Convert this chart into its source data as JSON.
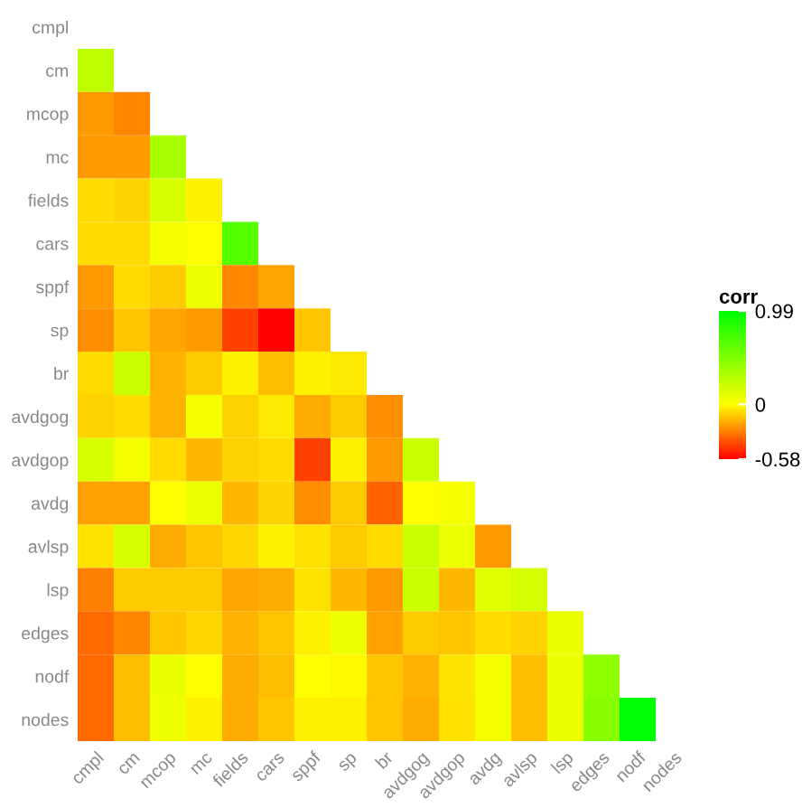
{
  "chart_data": {
    "type": "heatmap",
    "clabel": "corr",
    "clim": [
      -0.58,
      0.99
    ],
    "cticks": [
      -0.58,
      0,
      0.99
    ],
    "categories": [
      "cmpl",
      "cm",
      "mcop",
      "mc",
      "fields",
      "cars",
      "sppf",
      "sp",
      "br",
      "avdgog",
      "avdgop",
      "avdg",
      "avlsp",
      "lsp",
      "edges",
      "nodf",
      "nodes"
    ],
    "y_categories": [
      "cmpl",
      "cm",
      "mcop",
      "mc",
      "fields",
      "cars",
      "sppf",
      "sp",
      "br",
      "avdgog",
      "avdgop",
      "avdg",
      "avlsp",
      "lsp",
      "edges",
      "nodf",
      "nodes"
    ],
    "cells": [
      [
        null,
        null,
        null,
        null,
        null,
        null,
        null,
        null,
        null,
        null,
        null,
        null,
        null,
        null,
        null,
        null,
        null
      ],
      [
        0.25,
        null,
        null,
        null,
        null,
        null,
        null,
        null,
        null,
        null,
        null,
        null,
        null,
        null,
        null,
        null,
        null
      ],
      [
        -0.23,
        -0.27,
        null,
        null,
        null,
        null,
        null,
        null,
        null,
        null,
        null,
        null,
        null,
        null,
        null,
        null,
        null
      ],
      [
        -0.23,
        -0.23,
        0.33,
        null,
        null,
        null,
        null,
        null,
        null,
        null,
        null,
        null,
        null,
        null,
        null,
        null,
        null
      ],
      [
        -0.08,
        -0.1,
        0.15,
        -0.03,
        null,
        null,
        null,
        null,
        null,
        null,
        null,
        null,
        null,
        null,
        null,
        null,
        null
      ],
      [
        -0.08,
        -0.08,
        0.04,
        0.0,
        0.66,
        null,
        null,
        null,
        null,
        null,
        null,
        null,
        null,
        null,
        null,
        null,
        null
      ],
      [
        -0.23,
        -0.08,
        -0.12,
        0.07,
        -0.27,
        -0.2,
        null,
        null,
        null,
        null,
        null,
        null,
        null,
        null,
        null,
        null,
        null
      ],
      [
        -0.26,
        -0.13,
        -0.2,
        -0.23,
        -0.43,
        -0.58,
        -0.13,
        null,
        null,
        null,
        null,
        null,
        null,
        null,
        null,
        null,
        null
      ],
      [
        -0.08,
        0.21,
        -0.17,
        -0.12,
        -0.03,
        -0.15,
        -0.03,
        -0.05,
        null,
        null,
        null,
        null,
        null,
        null,
        null,
        null,
        null
      ],
      [
        -0.1,
        -0.08,
        -0.17,
        0.04,
        -0.1,
        -0.05,
        -0.19,
        -0.12,
        -0.26,
        null,
        null,
        null,
        null,
        null,
        null,
        null,
        null
      ],
      [
        0.15,
        0.05,
        -0.08,
        -0.16,
        -0.1,
        -0.08,
        -0.43,
        -0.03,
        -0.23,
        0.21,
        null,
        null,
        null,
        null,
        null,
        null,
        null
      ],
      [
        -0.21,
        -0.21,
        0.0,
        0.07,
        -0.16,
        -0.1,
        -0.26,
        -0.12,
        -0.35,
        0.0,
        0.04,
        null,
        null,
        null,
        null,
        null,
        null
      ],
      [
        -0.06,
        0.15,
        -0.19,
        -0.13,
        -0.09,
        -0.03,
        -0.07,
        -0.12,
        -0.08,
        0.21,
        0.07,
        -0.23,
        null,
        null,
        null,
        null,
        null
      ],
      [
        -0.29,
        -0.12,
        -0.12,
        -0.12,
        -0.2,
        -0.19,
        -0.06,
        -0.16,
        -0.23,
        0.21,
        -0.16,
        0.12,
        0.17,
        null,
        null,
        null,
        null
      ],
      [
        -0.34,
        -0.27,
        -0.13,
        -0.09,
        -0.17,
        -0.13,
        -0.03,
        0.07,
        -0.21,
        -0.12,
        -0.13,
        -0.08,
        -0.1,
        0.08,
        null,
        null,
        null
      ],
      [
        -0.34,
        -0.15,
        0.08,
        0.0,
        -0.19,
        -0.15,
        0.0,
        -0.01,
        -0.13,
        -0.17,
        -0.06,
        0.05,
        -0.15,
        0.08,
        0.45,
        null,
        null
      ],
      [
        -0.34,
        -0.15,
        0.07,
        -0.03,
        -0.19,
        -0.13,
        -0.03,
        -0.03,
        -0.13,
        -0.19,
        -0.07,
        0.05,
        -0.15,
        0.08,
        0.46,
        0.99,
        null
      ]
    ]
  }
}
